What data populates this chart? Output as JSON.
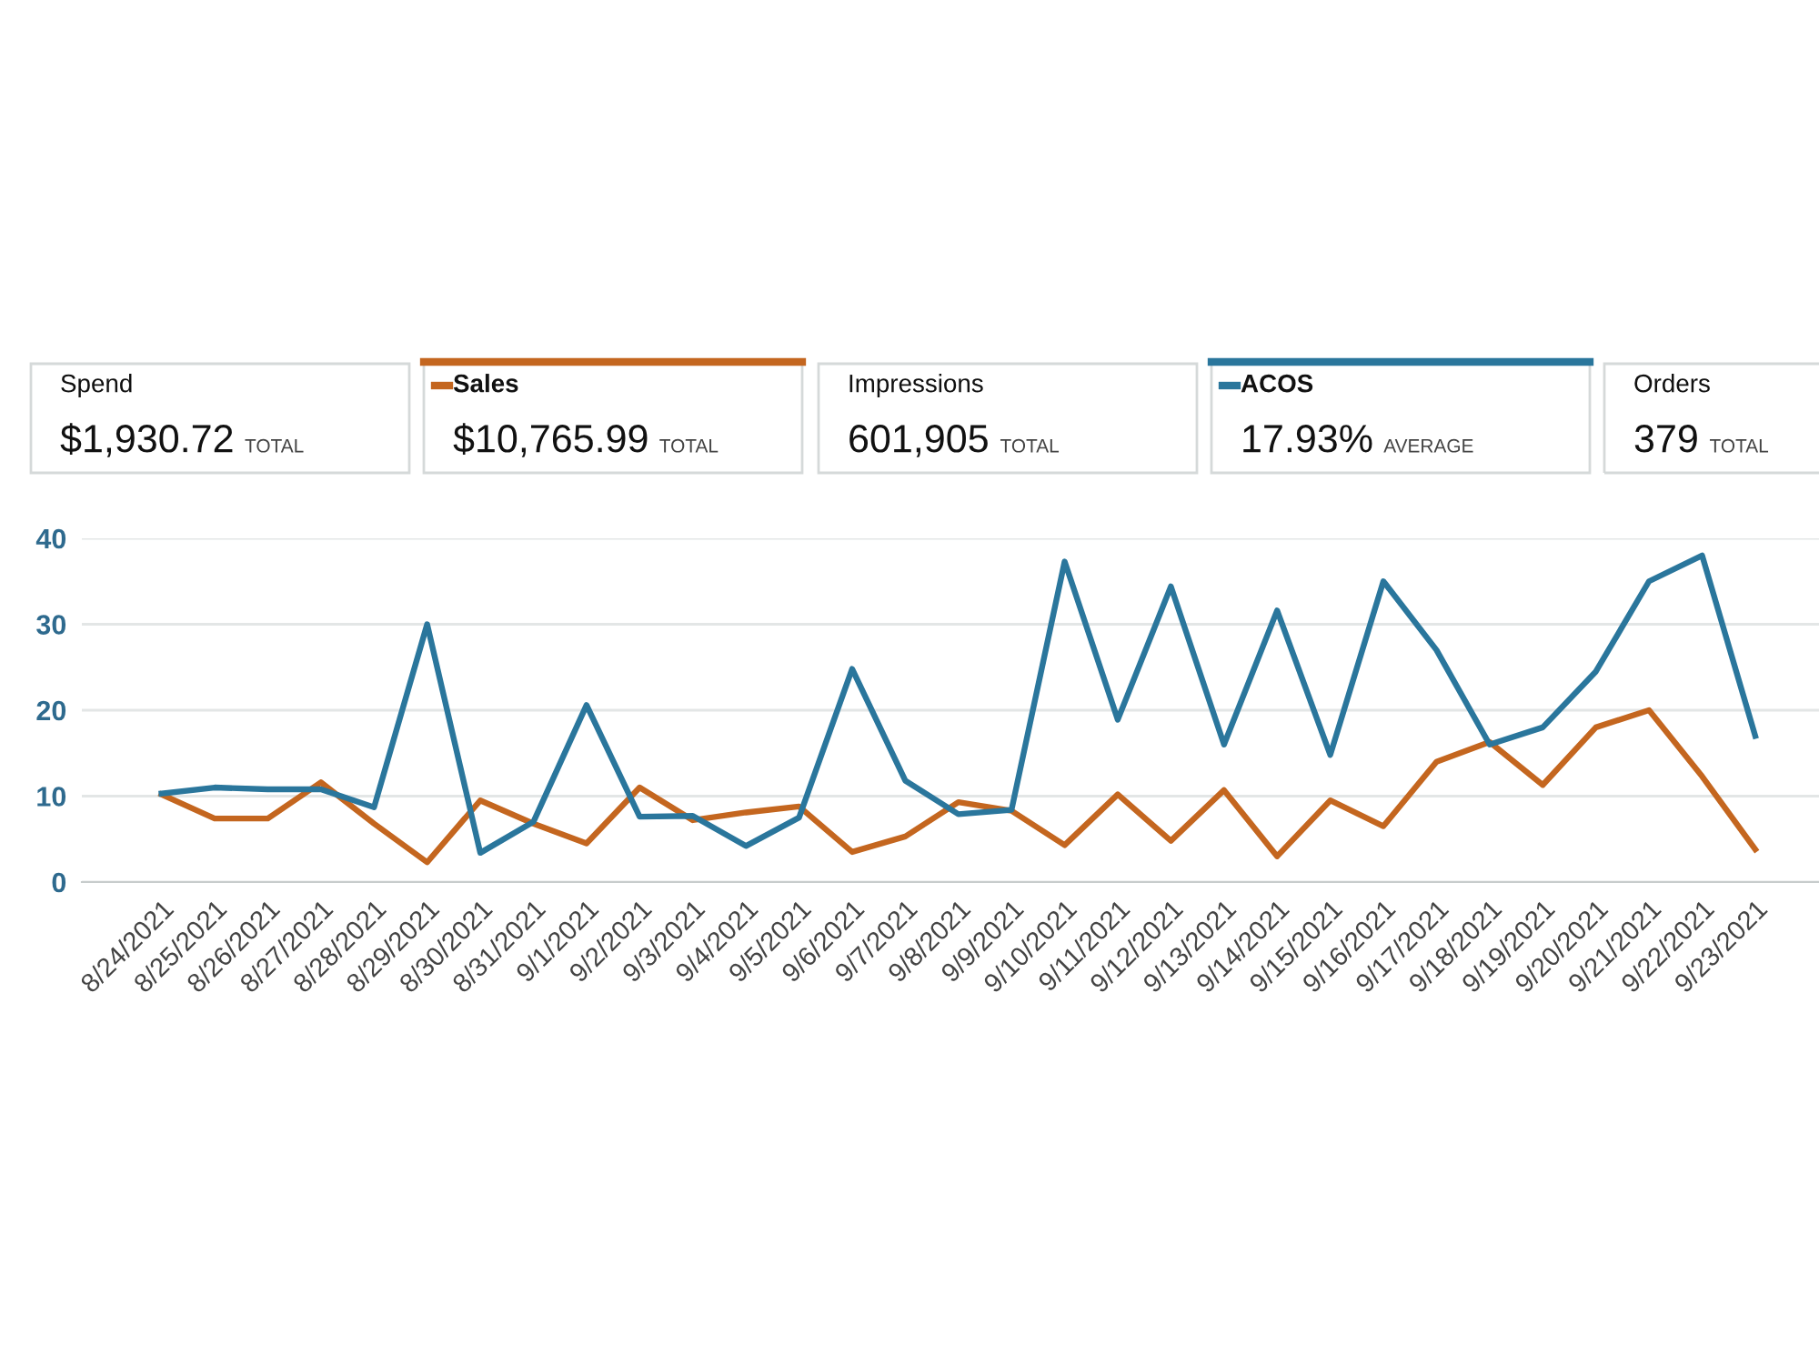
{
  "chart_data": {
    "type": "line",
    "categories": [
      "8/24/2021",
      "8/25/2021",
      "8/26/2021",
      "8/27/2021",
      "8/28/2021",
      "8/29/2021",
      "8/30/2021",
      "8/31/2021",
      "9/1/2021",
      "9/2/2021",
      "9/3/2021",
      "9/4/2021",
      "9/5/2021",
      "9/6/2021",
      "9/7/2021",
      "9/8/2021",
      "9/9/2021",
      "9/10/2021",
      "9/11/2021",
      "9/12/2021",
      "9/13/2021",
      "9/14/2021",
      "9/15/2021",
      "9/16/2021",
      "9/17/2021",
      "9/18/2021",
      "9/19/2021",
      "9/20/2021",
      "9/21/2021",
      "9/22/2021",
      "9/23/2021"
    ],
    "series": [
      {
        "name": "Sales",
        "color": "#c4661f",
        "values": [
          10.2,
          7.4,
          7.4,
          11.6,
          6.8,
          2.3,
          9.5,
          6.8,
          4.5,
          11,
          7.2,
          8.1,
          8.8,
          3.5,
          5.3,
          9.3,
          8.3,
          4.3,
          10.2,
          4.8,
          10.7,
          3,
          9.5,
          6.5,
          14,
          16.3,
          11.3,
          18,
          20,
          12.3,
          3.8
        ]
      },
      {
        "name": "ACOS",
        "color": "#2a769c",
        "values": [
          10.3,
          11,
          10.8,
          10.8,
          8.7,
          30,
          3.4,
          7,
          20.6,
          7.6,
          7.7,
          4.2,
          7.5,
          24.8,
          11.8,
          7.9,
          8.4,
          37.3,
          18.9,
          34.4,
          16,
          31.6,
          14.8,
          35,
          27,
          16,
          18,
          24.5,
          35,
          38,
          17
        ]
      }
    ],
    "ylim": [
      0,
      40
    ],
    "yticks": [
      0,
      10,
      20,
      30,
      40
    ],
    "grid": "y",
    "legend": "top",
    "marker": "none",
    "line_style": "solid",
    "annotations": [
      "Spend",
      "$1,930.72",
      "TOTAL",
      "$10,765.99",
      "TOTAL",
      "Impressions",
      "601,905",
      "TOTAL",
      "17.93%",
      "AVERAGE",
      "Orders",
      "379",
      "TOTAL"
    ]
  }
}
